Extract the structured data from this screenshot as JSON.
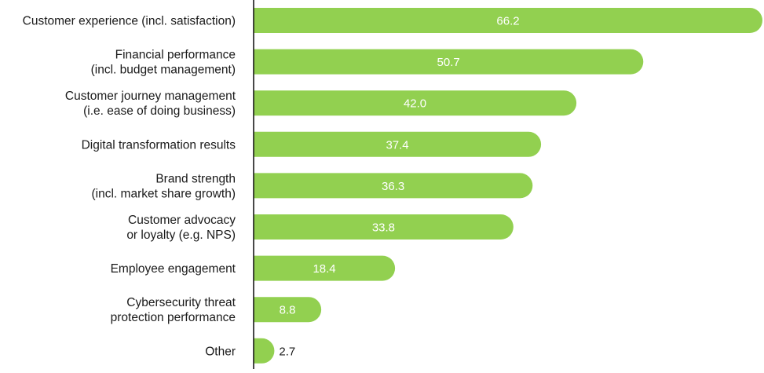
{
  "chart_data": {
    "type": "bar",
    "orientation": "horizontal",
    "title": "",
    "xlabel": "",
    "ylabel": "",
    "xlim": [
      0,
      66.2
    ],
    "grid": false,
    "bar_color": "#92d050",
    "axis_color": "#1a1a1a",
    "categories": [
      [
        "Customer experience (incl. satisfaction)"
      ],
      [
        "Financial performance",
        "(incl. budget management)"
      ],
      [
        "Customer journey management",
        "(i.e. ease of doing business)"
      ],
      [
        "Digital transformation results"
      ],
      [
        "Brand strength",
        "(incl. market share growth)"
      ],
      [
        "Customer advocacy",
        "or loyalty (e.g. NPS)"
      ],
      [
        "Employee engagement"
      ],
      [
        "Cybersecurity threat",
        "protection performance"
      ],
      [
        "Other"
      ]
    ],
    "values": [
      66.2,
      50.7,
      42.0,
      37.4,
      36.3,
      33.8,
      18.4,
      8.8,
      2.7
    ],
    "value_labels": [
      "66.2",
      "50.7",
      "42.0",
      "37.4",
      "36.3",
      "33.8",
      "18.4",
      "8.8",
      "2.7"
    ]
  }
}
